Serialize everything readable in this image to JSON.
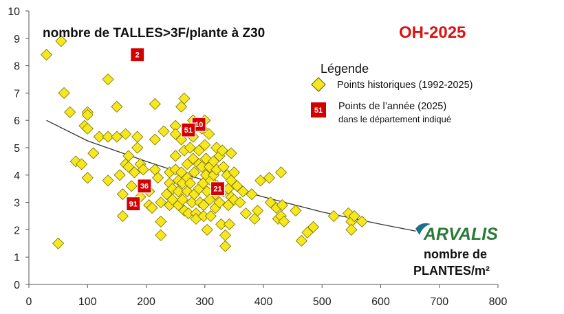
{
  "chart_data": {
    "type": "scatter",
    "title": "nombre de TALLES>3F/plante à Z30",
    "tag": "OH-2025",
    "xaxis_name_line1": "nombre de",
    "xaxis_name_line2": "PLANTES/m²",
    "xlim": [
      0,
      800
    ],
    "ylim": [
      0,
      10
    ],
    "xticks": [
      "0",
      "100",
      "200",
      "300",
      "400",
      "500",
      "600",
      "700",
      "800"
    ],
    "yticks": [
      "0",
      "1",
      "2",
      "3",
      "4",
      "5",
      "6",
      "7",
      "8",
      "9",
      "10"
    ],
    "grid": false,
    "legend": {
      "heading": "Légende",
      "placement": "top-right",
      "historic_label": "Points historiques (1992-2025)",
      "year_label_line1": "Points de l’année (2025)",
      "year_label_line2": "dans le département indiqué",
      "year_marker_text": "51"
    },
    "brand": "ARVALIS",
    "colors": {
      "historic_fill": "#f6e81e",
      "historic_stroke": "#7a6a00",
      "year_fill": "#d40000",
      "tag": "#e01010",
      "brand_green": "#2a7a3a",
      "brand_blue": "#1d6f8c",
      "trend": "#333333"
    },
    "trend": {
      "x": [
        30,
        100,
        200,
        300,
        400,
        500,
        600,
        660
      ],
      "y": [
        6.0,
        5.25,
        4.5,
        3.8,
        3.2,
        2.65,
        2.2,
        1.95
      ]
    },
    "series": [
      {
        "name": "Points historiques (1992-2025)",
        "points": [
          [
            30,
            8.4
          ],
          [
            55,
            8.9
          ],
          [
            60,
            7.0
          ],
          [
            70,
            6.3
          ],
          [
            80,
            4.5
          ],
          [
            90,
            4.4
          ],
          [
            95,
            5.8
          ],
          [
            100,
            6.3
          ],
          [
            100,
            6.2
          ],
          [
            100,
            5.7
          ],
          [
            100,
            3.9
          ],
          [
            110,
            4.8
          ],
          [
            50,
            1.5
          ],
          [
            120,
            5.4
          ],
          [
            135,
            7.5
          ],
          [
            135,
            5.4
          ],
          [
            135,
            3.8
          ],
          [
            150,
            6.5
          ],
          [
            150,
            5.4
          ],
          [
            155,
            4.0
          ],
          [
            160,
            3.3
          ],
          [
            160,
            2.5
          ],
          [
            165,
            5.5
          ],
          [
            165,
            4.4
          ],
          [
            170,
            4.7
          ],
          [
            170,
            4.3
          ],
          [
            175,
            3.6
          ],
          [
            180,
            4.1
          ],
          [
            185,
            5.4
          ],
          [
            185,
            5.0
          ],
          [
            190,
            4.4
          ],
          [
            190,
            3.2
          ],
          [
            195,
            4.2
          ],
          [
            200,
            3.6
          ],
          [
            205,
            3.4
          ],
          [
            205,
            2.9
          ],
          [
            210,
            2.8
          ],
          [
            215,
            6.6
          ],
          [
            215,
            5.3
          ],
          [
            215,
            4.2
          ],
          [
            220,
            3.9
          ],
          [
            225,
            3.0
          ],
          [
            225,
            2.3
          ],
          [
            225,
            1.8
          ],
          [
            230,
            5.6
          ],
          [
            235,
            3.3
          ],
          [
            240,
            4.1
          ],
          [
            240,
            3.7
          ],
          [
            240,
            2.9
          ],
          [
            245,
            3.5
          ],
          [
            245,
            3.1
          ],
          [
            250,
            5.8
          ],
          [
            250,
            5.5
          ],
          [
            250,
            4.7
          ],
          [
            250,
            4.2
          ],
          [
            255,
            3.8
          ],
          [
            255,
            3.4
          ],
          [
            255,
            2.9
          ],
          [
            260,
            6.5
          ],
          [
            260,
            5.3
          ],
          [
            260,
            4.1
          ],
          [
            262,
            3.7
          ],
          [
            262,
            3.1
          ],
          [
            265,
            6.8
          ],
          [
            265,
            4.9
          ],
          [
            265,
            2.7
          ],
          [
            270,
            4.4
          ],
          [
            270,
            3.9
          ],
          [
            270,
            3.4
          ],
          [
            272,
            2.6
          ],
          [
            275,
            5.0
          ],
          [
            275,
            3.7
          ],
          [
            278,
            3.0
          ],
          [
            280,
            6.0
          ],
          [
            280,
            5.4
          ],
          [
            280,
            4.6
          ],
          [
            282,
            4.1
          ],
          [
            282,
            3.3
          ],
          [
            285,
            2.6
          ],
          [
            285,
            2.4
          ],
          [
            290,
            4.9
          ],
          [
            290,
            4.4
          ],
          [
            290,
            3.5
          ],
          [
            292,
            3.0
          ],
          [
            295,
            5.7
          ],
          [
            295,
            4.3
          ],
          [
            297,
            3.7
          ],
          [
            298,
            2.9
          ],
          [
            298,
            2.5
          ],
          [
            300,
            6.0
          ],
          [
            300,
            5.1
          ],
          [
            302,
            4.6
          ],
          [
            302,
            4.0
          ],
          [
            304,
            3.4
          ],
          [
            304,
            2.0
          ],
          [
            307,
            5.5
          ],
          [
            308,
            4.3
          ],
          [
            308,
            3.1
          ],
          [
            310,
            3.8
          ],
          [
            310,
            2.5
          ],
          [
            315,
            4.5
          ],
          [
            315,
            4.0
          ],
          [
            318,
            3.3
          ],
          [
            318,
            2.8
          ],
          [
            320,
            5.0
          ],
          [
            320,
            4.2
          ],
          [
            322,
            3.6
          ],
          [
            325,
            4.7
          ],
          [
            325,
            3.0
          ],
          [
            328,
            2.2
          ],
          [
            330,
            4.9
          ],
          [
            332,
            4.3
          ],
          [
            332,
            3.4
          ],
          [
            335,
            1.8
          ],
          [
            335,
            1.4
          ],
          [
            338,
            4.0
          ],
          [
            340,
            3.5
          ],
          [
            340,
            2.9
          ],
          [
            342,
            2.2
          ],
          [
            345,
            4.8
          ],
          [
            345,
            3.8
          ],
          [
            345,
            3.2
          ],
          [
            350,
            4.1
          ],
          [
            350,
            3.1
          ],
          [
            355,
            3.6
          ],
          [
            360,
            3.0
          ],
          [
            365,
            3.4
          ],
          [
            370,
            2.6
          ],
          [
            380,
            3.3
          ],
          [
            385,
            2.4
          ],
          [
            390,
            2.7
          ],
          [
            395,
            3.8
          ],
          [
            410,
            3.9
          ],
          [
            412,
            3.0
          ],
          [
            422,
            2.8
          ],
          [
            425,
            2.4
          ],
          [
            430,
            2.5
          ],
          [
            430,
            4.1
          ],
          [
            432,
            2.9
          ],
          [
            435,
            2.3
          ],
          [
            455,
            2.7
          ],
          [
            465,
            1.6
          ],
          [
            475,
            1.9
          ],
          [
            485,
            2.1
          ],
          [
            520,
            2.5
          ],
          [
            545,
            2.6
          ],
          [
            550,
            2.3
          ],
          [
            550,
            2.0
          ],
          [
            555,
            2.5
          ],
          [
            568,
            2.3
          ]
        ]
      },
      {
        "name": "Points de l’année (2025)",
        "points": [
          {
            "x": 185,
            "y": 8.4,
            "label": "2"
          },
          {
            "x": 290,
            "y": 5.85,
            "label": "10"
          },
          {
            "x": 272,
            "y": 5.65,
            "label": "51"
          },
          {
            "x": 197,
            "y": 3.6,
            "label": "36"
          },
          {
            "x": 178,
            "y": 2.95,
            "label": "91"
          },
          {
            "x": 322,
            "y": 3.5,
            "label": "21"
          }
        ]
      }
    ]
  }
}
